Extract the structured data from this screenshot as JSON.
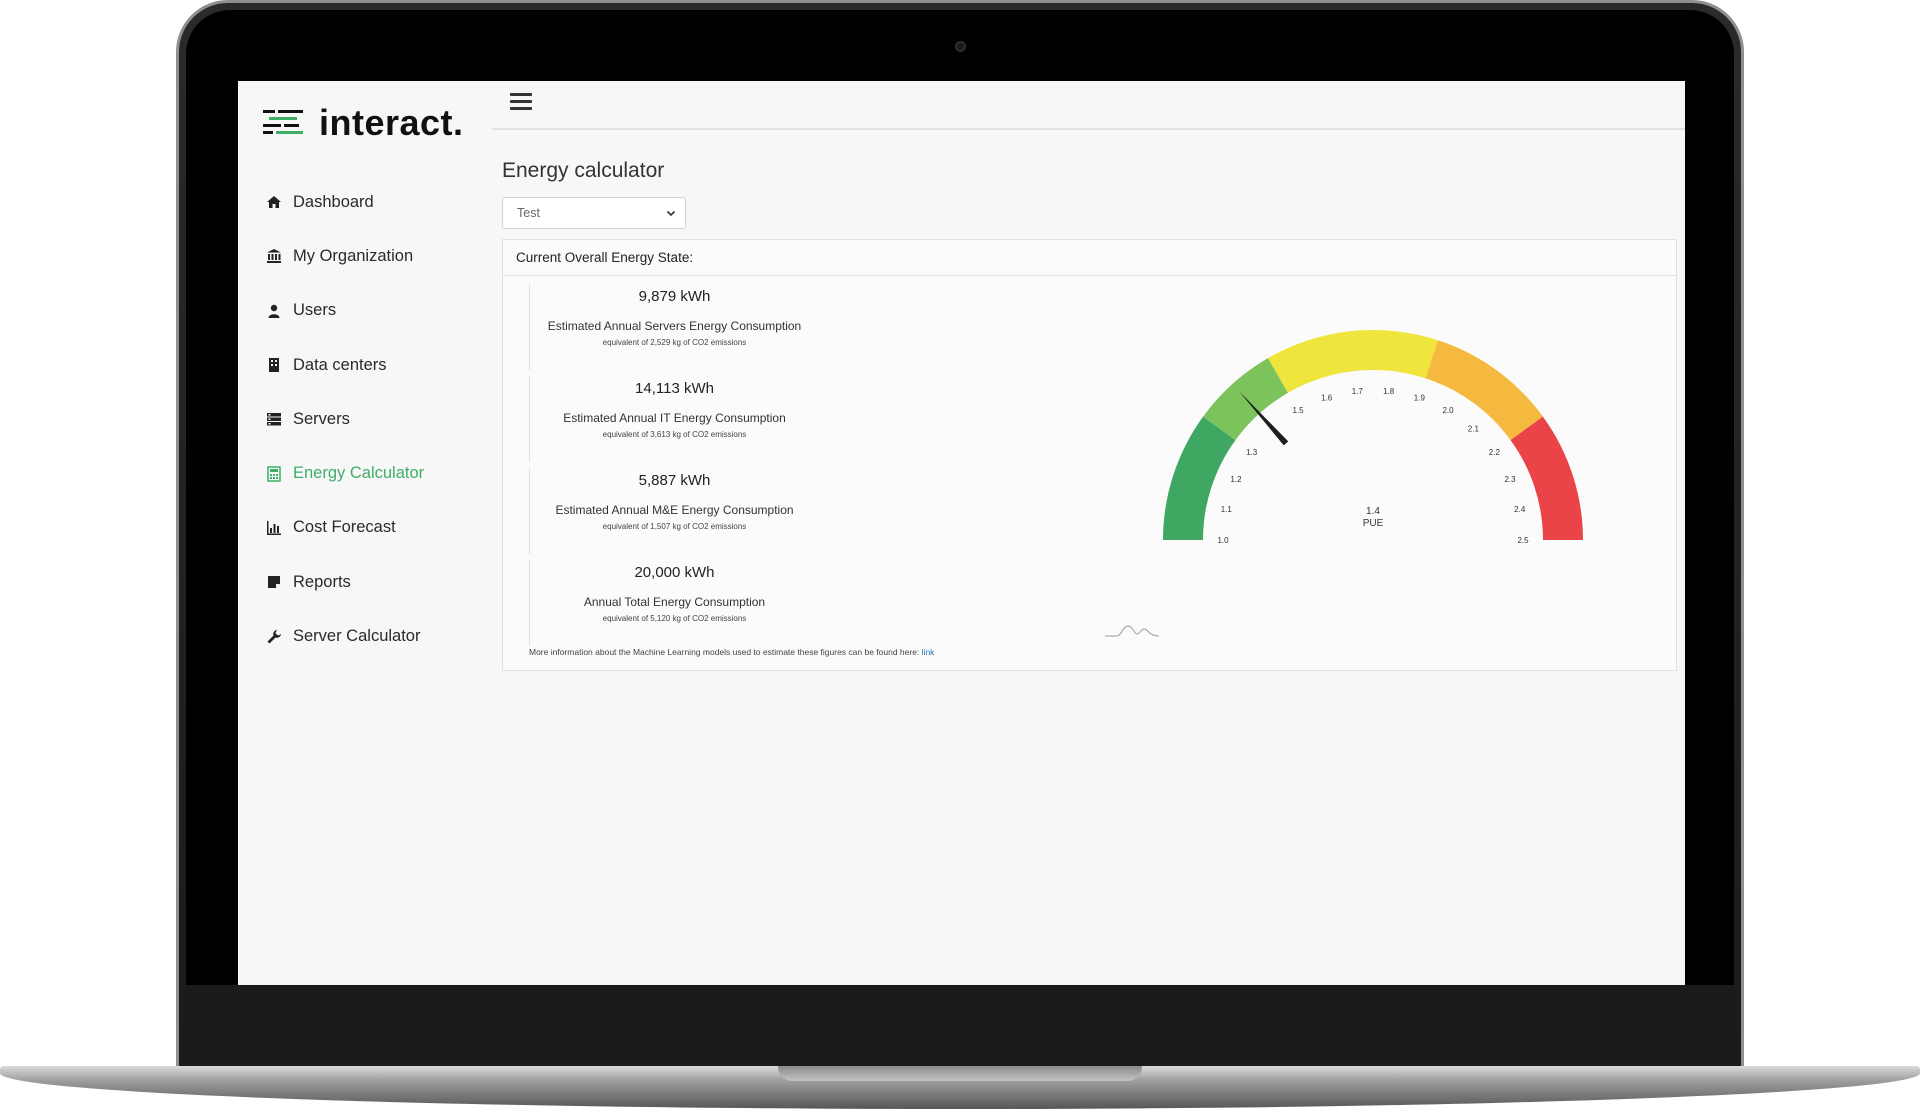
{
  "app": {
    "brand": "interact.",
    "accent_color": "#3fae68"
  },
  "sidebar": {
    "items": [
      {
        "label": "Dashboard",
        "icon": "home-icon"
      },
      {
        "label": "My Organization",
        "icon": "bank-icon"
      },
      {
        "label": "Users",
        "icon": "user-icon"
      },
      {
        "label": "Data centers",
        "icon": "building-icon"
      },
      {
        "label": "Servers",
        "icon": "server-icon"
      },
      {
        "label": "Energy Calculator",
        "icon": "calculator-icon",
        "active": true
      },
      {
        "label": "Cost Forecast",
        "icon": "bar-chart-icon"
      },
      {
        "label": "Reports",
        "icon": "report-icon"
      },
      {
        "label": "Server Calculator",
        "icon": "wrench-icon"
      }
    ]
  },
  "header": {
    "menu_icon": "hamburger-icon",
    "user_icon": "avatar-icon"
  },
  "main": {
    "title": "Energy calculator",
    "select_value": "Test",
    "panel_title": "Current Overall Energy State:",
    "stats": [
      {
        "value": "9,879 kWh",
        "label": "Estimated Annual Servers Energy Consumption",
        "sub": "equivalent of 2,529 kg of CO2 emissions"
      },
      {
        "value": "14,113 kWh",
        "label": "Estimated Annual IT Energy Consumption",
        "sub": "equivalent of 3,613 kg of CO2 emissions"
      },
      {
        "value": "5,887 kWh",
        "label": "Estimated Annual M&E Energy Consumption",
        "sub": "equivalent of 1,507 kg of CO2 emissions"
      },
      {
        "value": "20,000 kWh",
        "label": "Annual Total Energy Consumption",
        "sub": "equivalent of 5,120 kg of CO2 emissions"
      }
    ],
    "gauge": {
      "value": 1.4,
      "value_label": "1.4",
      "metric": "PUE",
      "min": 1.0,
      "max": 2.5,
      "ticks": [
        "1.0",
        "1.1",
        "1.2",
        "1.3",
        "1.5",
        "1.6",
        "1.7",
        "1.8",
        "1.9",
        "2.0",
        "2.1",
        "2.2",
        "2.3",
        "2.4",
        "2.5"
      ],
      "bands": [
        {
          "from": 1.0,
          "to": 1.3,
          "color": "#3ea862"
        },
        {
          "from": 1.3,
          "to": 1.5,
          "color": "#7cc35b"
        },
        {
          "from": 1.5,
          "to": 1.9,
          "color": "#f0e53c"
        },
        {
          "from": 1.9,
          "to": 2.2,
          "color": "#f6b940"
        },
        {
          "from": 2.2,
          "to": 2.5,
          "color": "#ea4449"
        }
      ]
    },
    "footnote": "More information about the Machine Learning models used to estimate these figures can be found here:",
    "footnote_link": "link"
  }
}
